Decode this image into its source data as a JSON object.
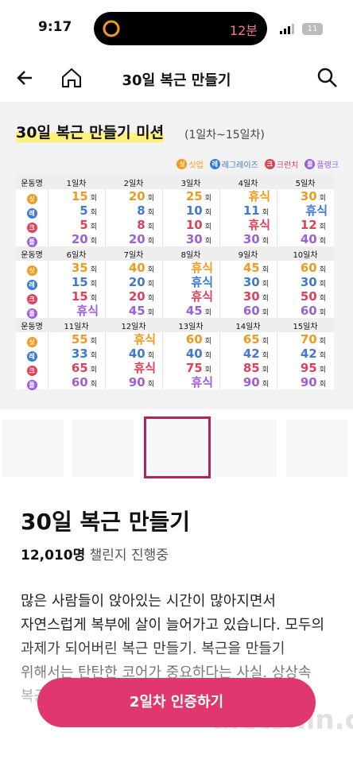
{
  "status_bar": {
    "time": "9:17",
    "activity": "12분",
    "battery": "11"
  },
  "header": {
    "title": "30일 복근 만들기"
  },
  "mission": {
    "title": "30일 복근 만들기 미션",
    "subtitle": "(1일차~15일차)",
    "legend": [
      {
        "icon": "싯",
        "name": "싯업",
        "color": "#f39a1e"
      },
      {
        "icon": "레",
        "name": "레그레이즈",
        "color": "#3f78d8"
      },
      {
        "icon": "크",
        "name": "크런치",
        "color": "#e2405a"
      },
      {
        "icon": "플",
        "name": "플랭크",
        "color": "#9c5fe0"
      }
    ],
    "table": {
      "header_label": "운동명",
      "unit": "회",
      "blocks": [
        {
          "days": [
            "1일차",
            "2일차",
            "3일차",
            "4일차",
            "5일차"
          ],
          "rows": [
            [
              15,
              20,
              25,
              "휴식",
              30
            ],
            [
              5,
              8,
              10,
              11,
              "휴식"
            ],
            [
              5,
              8,
              10,
              "휴식",
              12
            ],
            [
              20,
              20,
              30,
              30,
              40
            ]
          ]
        },
        {
          "days": [
            "6일차",
            "7일차",
            "8일차",
            "9일차",
            "10일차"
          ],
          "rows": [
            [
              35,
              40,
              "휴식",
              45,
              60
            ],
            [
              15,
              20,
              "휴식",
              30,
              30
            ],
            [
              15,
              20,
              "휴식",
              30,
              50
            ],
            [
              "휴식",
              45,
              45,
              60,
              60
            ]
          ]
        },
        {
          "days": [
            "11일차",
            "12일차",
            "13일차",
            "14일차",
            "15일차"
          ],
          "rows": [
            [
              55,
              "휴식",
              60,
              65,
              70
            ],
            [
              33,
              40,
              40,
              42,
              42
            ],
            [
              65,
              "휴식",
              75,
              85,
              95
            ],
            [
              60,
              90,
              "휴식",
              90,
              90
            ]
          ]
        }
      ]
    }
  },
  "challenge": {
    "title": "30일 복근 만들기",
    "count": "12,010명",
    "status": "챌린지 진행중",
    "description": "많은 사람들이 앉아있는 시간이 많아지면서 자연스럽게 복부에 살이 늘어가고 있습니다. 모두의 과제가 되어버린 복근 만들기. 복근을 만들기 위해서는 탄탄한 코어가 중요하다는 사실. 상상속 복근을 만들어 봐요"
  },
  "button": {
    "label": "2일차 인증하기"
  },
  "watermark": "dietshin.com"
}
